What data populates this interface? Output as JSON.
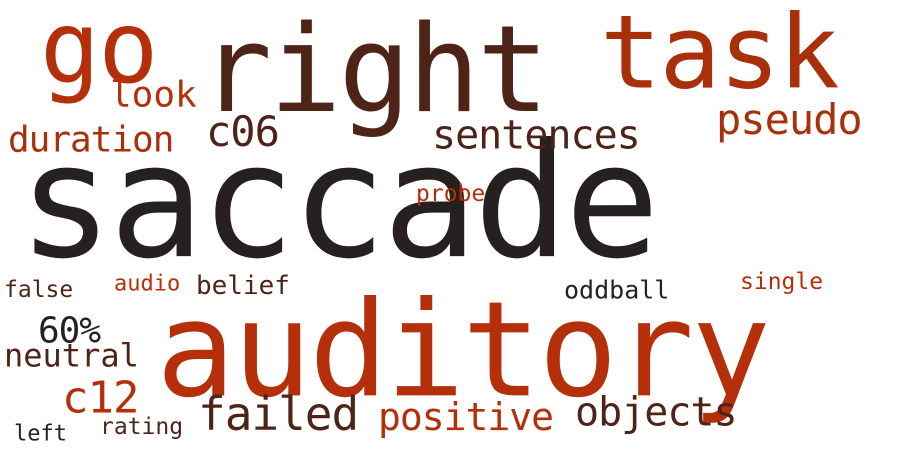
{
  "words": [
    {
      "text": "saccade",
      "color": "#262120"
    },
    {
      "text": "auditory",
      "color": "#b5300a"
    },
    {
      "text": "right",
      "color": "#4f2418"
    },
    {
      "text": "task",
      "color": "#a8300a"
    },
    {
      "text": "go",
      "color": "#b5300a"
    },
    {
      "text": "pseudo",
      "color": "#a8300a"
    },
    {
      "text": "sentences",
      "color": "#4f2418"
    },
    {
      "text": "duration",
      "color": "#a8300a"
    },
    {
      "text": "c06",
      "color": "#4f2418"
    },
    {
      "text": "look",
      "color": "#b5300a"
    },
    {
      "text": "objects",
      "color": "#4f2418"
    },
    {
      "text": "positive",
      "color": "#b5300a"
    },
    {
      "text": "failed",
      "color": "#4f2418"
    },
    {
      "text": "c12",
      "color": "#b5300a"
    },
    {
      "text": "60%",
      "color": "#262120"
    },
    {
      "text": "neutral",
      "color": "#4f2418"
    },
    {
      "text": "probe",
      "color": "#b5300a"
    },
    {
      "text": "oddball",
      "color": "#262120"
    },
    {
      "text": "single",
      "color": "#b5300a"
    },
    {
      "text": "audio",
      "color": "#b5300a"
    },
    {
      "text": "belief",
      "color": "#4f2418"
    },
    {
      "text": "false",
      "color": "#4f2418"
    },
    {
      "text": "rating",
      "color": "#4f2418"
    },
    {
      "text": "left",
      "color": "#262120"
    }
  ]
}
